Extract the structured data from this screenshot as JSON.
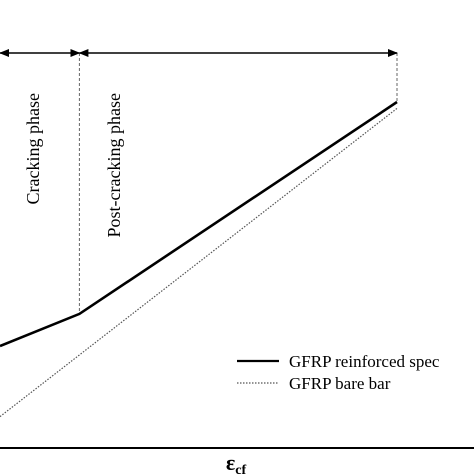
{
  "chart_data": {
    "type": "line",
    "xlabel": "ε",
    "xlabel_subscript": "cf",
    "ylabel": "",
    "grid": false,
    "legend_position": "bottom-right",
    "phases": [
      {
        "label": "Cracking phase",
        "x_start": 0.0,
        "x_end": 0.2
      },
      {
        "label": "Post-cracking phase",
        "x_start": 0.2,
        "x_end": 1.0
      }
    ],
    "series": [
      {
        "name": "GFRP reinforced spec",
        "style": "solid",
        "color": "#000000",
        "x": [
          0.0,
          0.2,
          1.0
        ],
        "y": [
          0.24,
          0.34,
          1.0
        ]
      },
      {
        "name": "GFRP bare bar",
        "style": "dotted",
        "color": "#555555",
        "x": [
          0.0,
          1.0
        ],
        "y": [
          0.02,
          0.98
        ]
      }
    ]
  }
}
